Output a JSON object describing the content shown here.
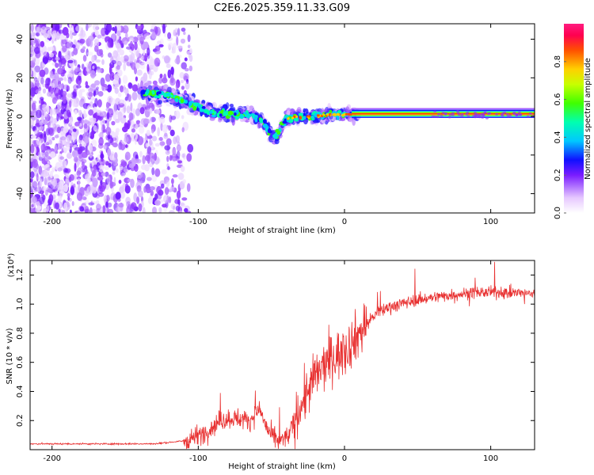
{
  "title": "C2E6.2025.359.11.33.G09",
  "chart_data": [
    {
      "type": "heatmap",
      "xlabel": "Height of straight line (km)",
      "ylabel": "Frequency (Hz)",
      "xlim": [
        -215,
        130
      ],
      "ylim": [
        -50,
        48
      ],
      "xticks": [
        -200,
        -100,
        0,
        100
      ],
      "yticks": [
        -40,
        -20,
        0,
        20,
        40
      ],
      "colorbar": {
        "label": "Normalized spectral amplitude",
        "range": [
          0,
          1
        ],
        "ticks": [
          "0.0",
          "0.2",
          "0.4",
          "0.6",
          "0.8"
        ],
        "tick_values": [
          0.0,
          0.2,
          0.4,
          0.6,
          0.8
        ]
      },
      "ridge": [
        {
          "x": -135,
          "freq": 12
        },
        {
          "x": -120,
          "freq": 11
        },
        {
          "x": -110,
          "freq": 8
        },
        {
          "x": -100,
          "freq": 5
        },
        {
          "x": -90,
          "freq": 2
        },
        {
          "x": -80,
          "freq": 1
        },
        {
          "x": -65,
          "freq": 1
        },
        {
          "x": -55,
          "freq": -3
        },
        {
          "x": -48,
          "freq": -12
        },
        {
          "x": -40,
          "freq": -1
        },
        {
          "x": -30,
          "freq": 0
        },
        {
          "x": -20,
          "freq": 0
        },
        {
          "x": -10,
          "freq": 1
        },
        {
          "x": 0,
          "freq": 1
        },
        {
          "x": 5,
          "freq": 1
        },
        {
          "x": 50,
          "freq": 1
        },
        {
          "x": 100,
          "freq": 1
        },
        {
          "x": 130,
          "freq": 1
        }
      ]
    },
    {
      "type": "line",
      "xlabel": "Height of straight line (km)",
      "ylabel": "SNR (10 * v/v)",
      "yscale_label": "(x10⁴)",
      "xlim": [
        -215,
        130
      ],
      "ylim": [
        0,
        1.3
      ],
      "xticks": [
        -200,
        -100,
        0,
        100
      ],
      "yticks": [
        "0.2",
        "0.4",
        "0.6",
        "0.8",
        "1.0",
        "1.2"
      ],
      "ytick_values": [
        0.2,
        0.4,
        0.6,
        0.8,
        1.0,
        1.2
      ],
      "color": "#e83030",
      "trend": [
        {
          "x": -215,
          "y": 0.04
        },
        {
          "x": -130,
          "y": 0.04
        },
        {
          "x": -110,
          "y": 0.06
        },
        {
          "x": -95,
          "y": 0.12
        },
        {
          "x": -85,
          "y": 0.2
        },
        {
          "x": -75,
          "y": 0.22
        },
        {
          "x": -65,
          "y": 0.2
        },
        {
          "x": -58,
          "y": 0.28
        },
        {
          "x": -52,
          "y": 0.12
        },
        {
          "x": -45,
          "y": 0.05
        },
        {
          "x": -38,
          "y": 0.1
        },
        {
          "x": -30,
          "y": 0.3
        },
        {
          "x": -20,
          "y": 0.5
        },
        {
          "x": -10,
          "y": 0.62
        },
        {
          "x": 0,
          "y": 0.68
        },
        {
          "x": 10,
          "y": 0.8
        },
        {
          "x": 20,
          "y": 0.92
        },
        {
          "x": 30,
          "y": 0.98
        },
        {
          "x": 50,
          "y": 1.03
        },
        {
          "x": 70,
          "y": 1.06
        },
        {
          "x": 90,
          "y": 1.08
        },
        {
          "x": 110,
          "y": 1.08
        },
        {
          "x": 130,
          "y": 1.07
        }
      ]
    }
  ]
}
